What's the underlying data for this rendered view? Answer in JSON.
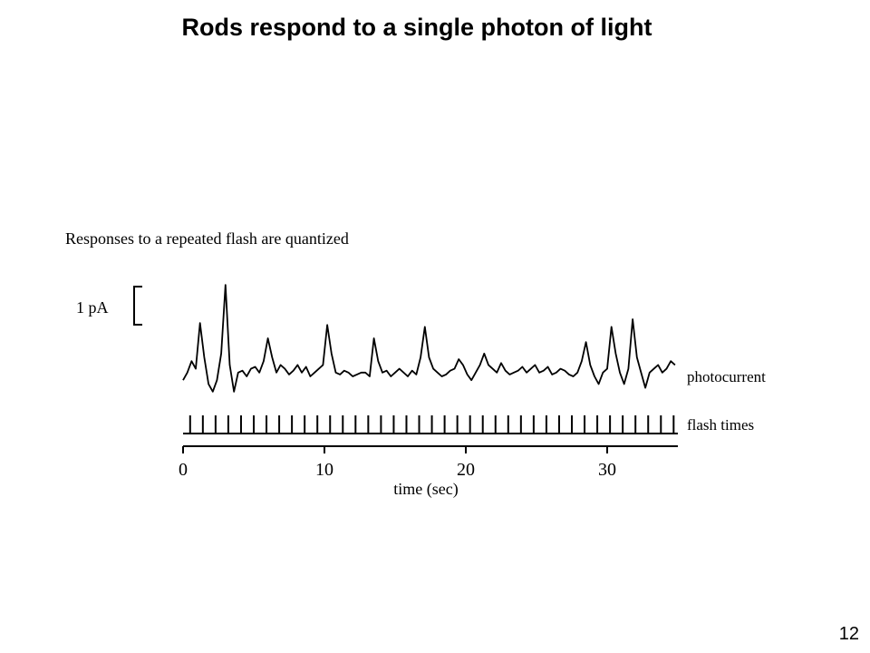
{
  "slide": {
    "title": "Rods respond to a single photon of light",
    "page_number": "12"
  },
  "chart_data": {
    "type": "line",
    "title": "Responses to a repeated flash are quantized",
    "xlabel": "time (sec)",
    "ylabel": "",
    "xlim": [
      0,
      35
    ],
    "x_ticks": [
      0,
      10,
      20,
      30
    ],
    "scale_bar": {
      "label": "1 pA",
      "value_pA": 1
    },
    "grid": false,
    "series": [
      {
        "name": "photocurrent",
        "x": [
          0,
          0.3,
          0.6,
          0.9,
          1.2,
          1.5,
          1.8,
          2.1,
          2.4,
          2.7,
          3.0,
          3.3,
          3.6,
          3.9,
          4.2,
          4.5,
          4.8,
          5.1,
          5.4,
          5.7,
          6.0,
          6.3,
          6.6,
          6.9,
          7.2,
          7.5,
          7.8,
          8.1,
          8.4,
          8.7,
          9.0,
          9.3,
          9.6,
          9.9,
          10.2,
          10.5,
          10.8,
          11.1,
          11.4,
          11.7,
          12.0,
          12.3,
          12.6,
          12.9,
          13.2,
          13.5,
          13.8,
          14.1,
          14.4,
          14.7,
          15.0,
          15.3,
          15.6,
          15.9,
          16.2,
          16.5,
          16.8,
          17.1,
          17.4,
          17.7,
          18.0,
          18.3,
          18.6,
          18.9,
          19.2,
          19.5,
          19.8,
          20.1,
          20.4,
          20.7,
          21.0,
          21.3,
          21.6,
          21.9,
          22.2,
          22.5,
          22.8,
          23.1,
          23.4,
          23.7,
          24.0,
          24.3,
          24.6,
          24.9,
          25.2,
          25.5,
          25.8,
          26.1,
          26.4,
          26.7,
          27.0,
          27.3,
          27.6,
          27.9,
          28.2,
          28.5,
          28.8,
          29.1,
          29.4,
          29.7,
          30.0,
          30.3,
          30.6,
          30.9,
          31.2,
          31.5,
          31.8,
          32.1,
          32.4,
          32.7,
          33.0,
          33.3,
          33.6,
          33.9,
          34.2,
          34.5,
          34.8
        ],
        "y": [
          -0.1,
          0.1,
          0.4,
          0.2,
          1.4,
          0.5,
          -0.2,
          -0.4,
          -0.1,
          0.6,
          2.4,
          0.3,
          -0.4,
          0.1,
          0.15,
          0.0,
          0.2,
          0.25,
          0.1,
          0.4,
          1.0,
          0.5,
          0.1,
          0.3,
          0.2,
          0.05,
          0.15,
          0.3,
          0.1,
          0.25,
          0.0,
          0.1,
          0.2,
          0.3,
          1.35,
          0.6,
          0.1,
          0.05,
          0.15,
          0.1,
          0.0,
          0.05,
          0.1,
          0.1,
          0.0,
          1.0,
          0.4,
          0.1,
          0.15,
          0.0,
          0.1,
          0.2,
          0.1,
          0.0,
          0.15,
          0.05,
          0.5,
          1.3,
          0.5,
          0.2,
          0.1,
          0.0,
          0.05,
          0.15,
          0.2,
          0.45,
          0.3,
          0.05,
          -0.1,
          0.1,
          0.3,
          0.6,
          0.3,
          0.2,
          0.1,
          0.35,
          0.15,
          0.05,
          0.1,
          0.15,
          0.25,
          0.1,
          0.2,
          0.3,
          0.1,
          0.15,
          0.25,
          0.05,
          0.1,
          0.2,
          0.15,
          0.05,
          0.0,
          0.1,
          0.4,
          0.9,
          0.3,
          0.0,
          -0.2,
          0.1,
          0.2,
          1.3,
          0.6,
          0.1,
          -0.2,
          0.2,
          1.5,
          0.5,
          0.1,
          -0.3,
          0.1,
          0.2,
          0.3,
          0.1,
          0.2,
          0.4,
          0.3
        ]
      },
      {
        "name": "flash times",
        "flash_times": [
          0.5,
          1.4,
          2.3,
          3.2,
          4.1,
          5.0,
          5.9,
          6.8,
          7.7,
          8.6,
          9.5,
          10.4,
          11.3,
          12.2,
          13.1,
          14.0,
          14.9,
          15.8,
          16.7,
          17.6,
          18.5,
          19.4,
          20.3,
          21.2,
          22.1,
          23.0,
          23.9,
          24.8,
          25.7,
          26.6,
          27.5,
          28.4,
          29.3,
          30.2,
          31.1,
          32.0,
          32.9,
          33.8,
          34.7
        ]
      }
    ]
  }
}
